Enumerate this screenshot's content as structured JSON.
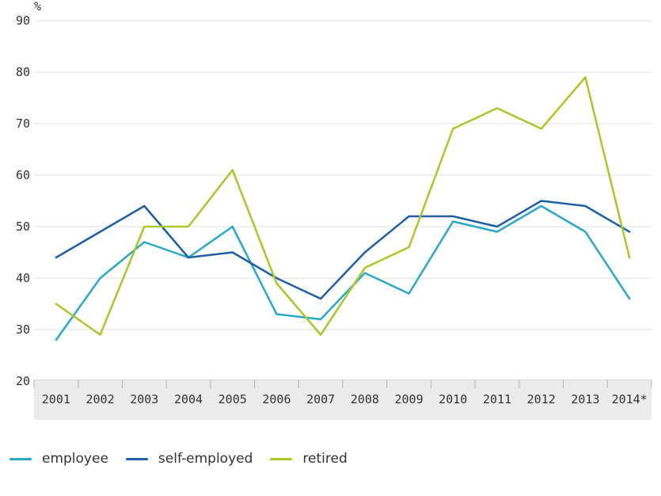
{
  "chart_data": {
    "type": "line",
    "title": "",
    "xlabel": "",
    "ylabel": "%",
    "categories": [
      "2001",
      "2002",
      "2003",
      "2004",
      "2005",
      "2006",
      "2007",
      "2008",
      "2009",
      "2010",
      "2011",
      "2012",
      "2013",
      "2014*"
    ],
    "y_ticks": [
      20,
      30,
      40,
      50,
      60,
      70,
      80,
      90
    ],
    "ylim": [
      20,
      93
    ],
    "grid": true,
    "legend_position": "bottom",
    "series": [
      {
        "name": "employee",
        "color": "#29a8c8",
        "values": [
          28,
          40,
          47,
          44,
          50,
          33,
          32,
          41,
          37,
          51,
          49,
          54,
          49,
          36
        ]
      },
      {
        "name": "self-employed",
        "color": "#1f5fa6",
        "values": [
          44,
          49,
          54,
          44,
          45,
          40,
          36,
          45,
          52,
          52,
          50,
          55,
          54,
          49
        ]
      },
      {
        "name": "retired",
        "color": "#a9c827",
        "values": [
          35,
          29,
          50,
          50,
          61,
          39,
          29,
          42,
          46,
          69,
          73,
          69,
          79,
          44
        ]
      }
    ]
  },
  "style_colors": {
    "gridline": "#dfdfdf",
    "axis_band": "#ebebeb",
    "band_border": "#d9d9d9",
    "tick": "#b3b3b3",
    "label_text": "#333333"
  }
}
